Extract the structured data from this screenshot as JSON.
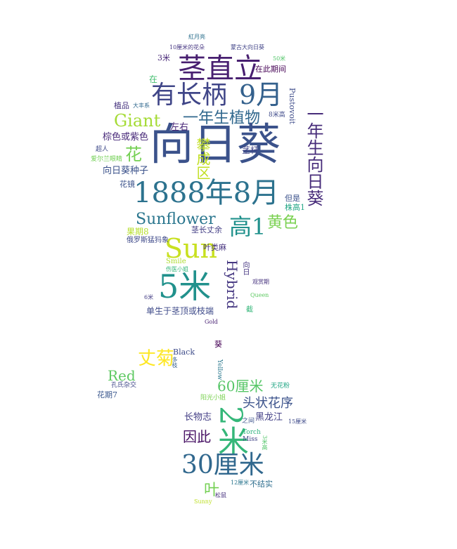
{
  "words": [
    {
      "t": "向日葵",
      "c": "#3b528b"
    },
    {
      "t": "茎直立",
      "c": "#481f70"
    },
    {
      "t": "有长柄",
      "c": "#404688"
    },
    {
      "t": "9月",
      "c": "#34618d"
    },
    {
      "t": "1888年8月",
      "c": "#2c728e"
    },
    {
      "t": "一年生向日葵",
      "c": "#472c7a"
    },
    {
      "t": "一年生植物",
      "c": "#31688e"
    },
    {
      "t": "Giant",
      "c": "#a5db36"
    },
    {
      "t": "花",
      "c": "#75d054"
    },
    {
      "t": "攀成区",
      "c": "#c2df23"
    },
    {
      "t": "左右",
      "c": "#482677"
    },
    {
      "t": "棕色或紫色",
      "c": "#482979"
    },
    {
      "t": "向日葵种子",
      "c": "#3b528b"
    },
    {
      "t": "茎杆",
      "c": "#414487"
    },
    {
      "t": "Sunflower",
      "c": "#2a768e"
    },
    {
      "t": "高1",
      "c": "#21918c"
    },
    {
      "t": "黄色",
      "c": "#7ad151"
    },
    {
      "t": "Sun",
      "c": "#c8e020"
    },
    {
      "t": "5米",
      "c": "#21918c"
    },
    {
      "t": "Hybrid",
      "c": "#453781"
    },
    {
      "t": "单生于茎顶或枝端",
      "c": "#3e4a89"
    },
    {
      "t": "果期8",
      "c": "#b5de2b"
    },
    {
      "t": "茎长丈余",
      "c": "#433e85"
    },
    {
      "t": "叶类麻",
      "c": "#46337f"
    },
    {
      "t": "Smile",
      "c": "#addc30"
    },
    {
      "t": "伤医小姐",
      "c": "#35b779"
    },
    {
      "t": "俄罗斯猛犸象",
      "c": "#3e4989"
    },
    {
      "t": "株高1",
      "c": "#22a785"
    },
    {
      "t": "但是",
      "c": "#3b528b"
    },
    {
      "t": "Pustovoit",
      "c": "#3e4c8a"
    },
    {
      "t": "在此期间",
      "c": "#440154"
    },
    {
      "t": "8米高",
      "c": "#3e4a89"
    },
    {
      "t": "植品",
      "c": "#46337f"
    },
    {
      "t": "大丰系",
      "c": "#31688e"
    },
    {
      "t": "3米",
      "c": "#482878"
    },
    {
      "t": "紅月亮",
      "c": "#2d708e"
    },
    {
      "t": "10厘米的花朵",
      "c": "#453581"
    },
    {
      "t": "蒙古大向日葵",
      "c": "#404387"
    },
    {
      "t": "50米",
      "c": "#52c569"
    },
    {
      "t": "在",
      "c": "#44bf70"
    },
    {
      "t": "超人",
      "c": "#3e4989"
    },
    {
      "t": "爱尔兰眼睛",
      "c": "#73d056"
    },
    {
      "t": "花镜",
      "c": "#3b528b"
    },
    {
      "t": "向日",
      "c": "#453581"
    },
    {
      "t": "观赏期",
      "c": "#46327e"
    },
    {
      "t": "6米",
      "c": "#433d84"
    },
    {
      "t": "Queen",
      "c": "#5ec962"
    },
    {
      "t": "Gold",
      "c": "#482173"
    },
    {
      "t": "截",
      "c": "#34b679"
    },
    {
      "t": "丈菊",
      "c": "#fde725"
    },
    {
      "t": "Red",
      "c": "#5ec962"
    },
    {
      "t": "Black",
      "c": "#3e4c8a"
    },
    {
      "t": "葵",
      "c": "#440154"
    },
    {
      "t": "Yellow",
      "c": "#2a788e"
    },
    {
      "t": "60厘米",
      "c": "#56c667"
    },
    {
      "t": "头状花序",
      "c": "#3b528b"
    },
    {
      "t": "2米",
      "c": "#35b779"
    },
    {
      "t": "长物志",
      "c": "#433e85"
    },
    {
      "t": "黑龙江",
      "c": "#424086"
    },
    {
      "t": "因此",
      "c": "#471164"
    },
    {
      "t": "30厘米",
      "c": "#31688e"
    },
    {
      "t": "叶",
      "c": "#75d054"
    },
    {
      "t": "不结实",
      "c": "#2e6e8e"
    },
    {
      "t": "花期7",
      "c": "#39568c"
    },
    {
      "t": "孔氏杂交",
      "c": "#3f4788"
    },
    {
      "t": "无花粉",
      "c": "#21a685"
    },
    {
      "t": "阳光小姐",
      "c": "#7ad151"
    },
    {
      "t": "15厘米",
      "c": "#3e4a89"
    },
    {
      "t": "Torch",
      "c": "#2db27d"
    },
    {
      "t": "Miss",
      "c": "#414487"
    },
    {
      "t": "之间",
      "c": "#3b528b"
    },
    {
      "t": "松鼠",
      "c": "#46307e"
    },
    {
      "t": "Sunny",
      "c": "#bddf26"
    },
    {
      "t": "12厘米",
      "c": "#2a768e"
    },
    {
      "t": "多枝",
      "c": "#355f8d"
    },
    {
      "t": "3米高",
      "c": "#52c569"
    }
  ]
}
